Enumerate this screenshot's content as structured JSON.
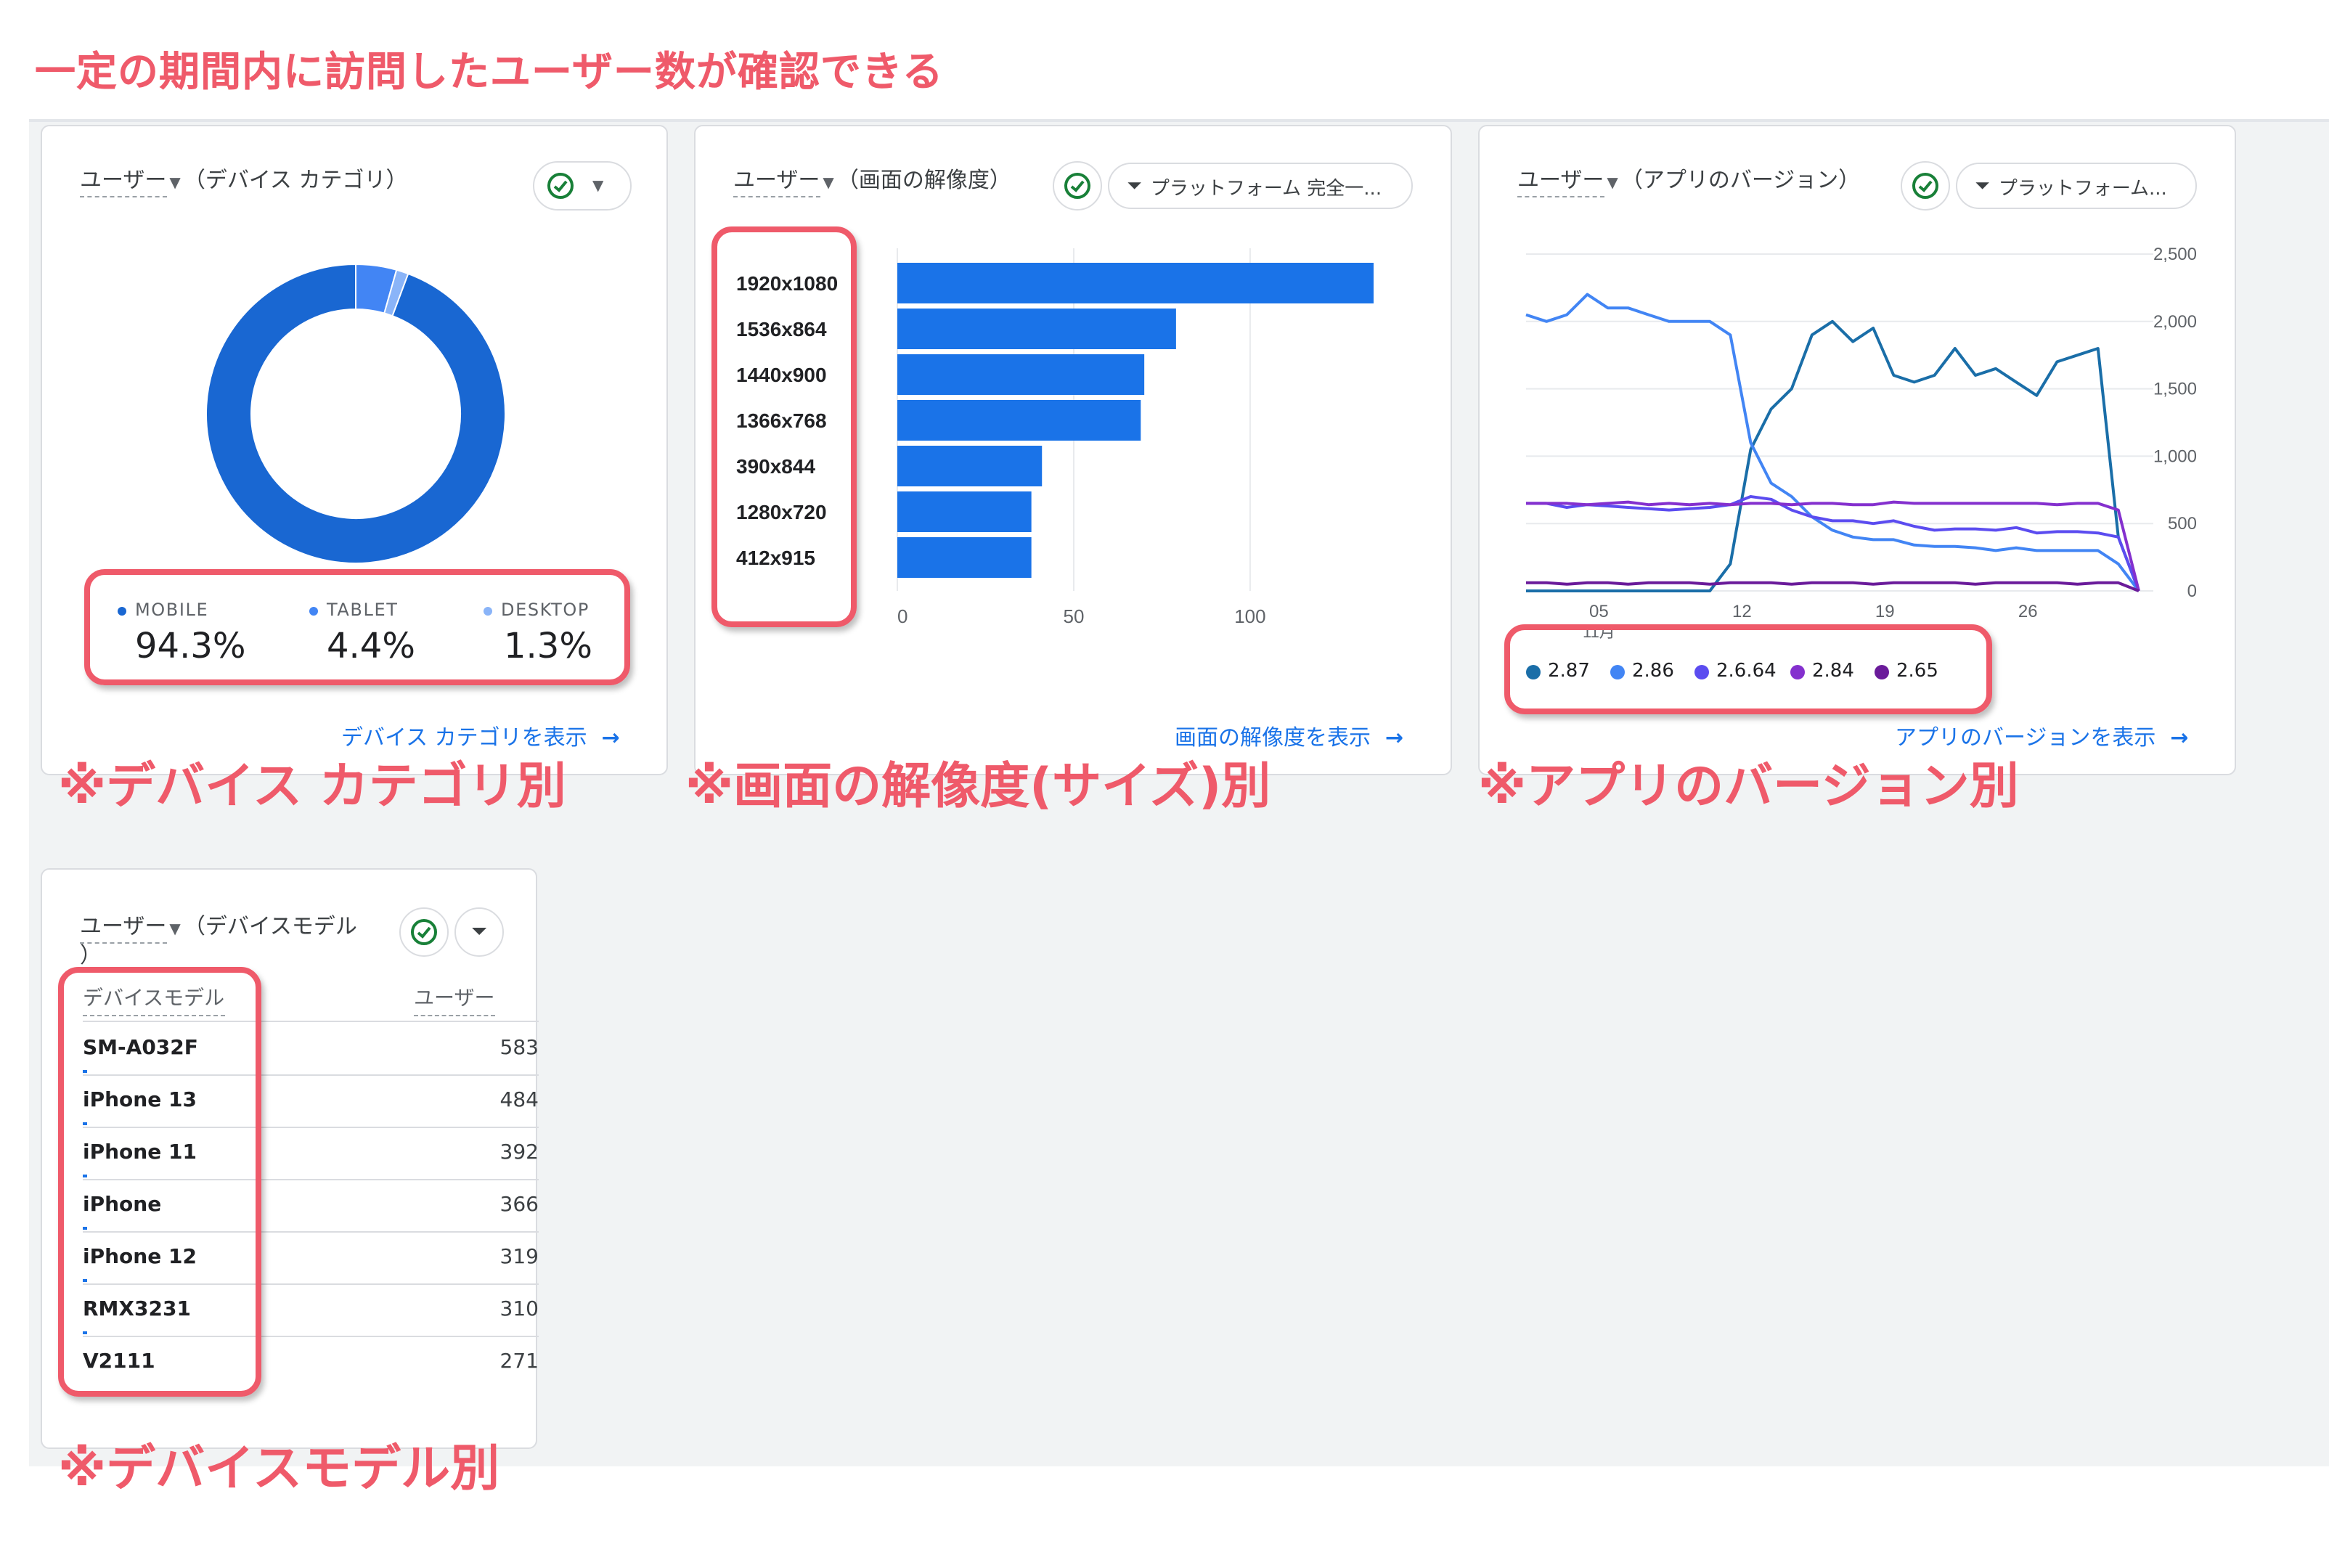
{
  "headline": "一定の期間内に訪問したユーザー数が確認できる",
  "colors": {
    "accent": "#1a73e8",
    "annotation": "#ef5a6a"
  },
  "card_device_category": {
    "metric": "ユーザー",
    "dimension": "（デバイス カテゴリ）",
    "check_icon": "check-circle-icon",
    "legend": [
      {
        "label": "MOBILE",
        "value": "94.3%",
        "color": "#1967d2"
      },
      {
        "label": "TABLET",
        "value": "4.4%",
        "color": "#4285f4"
      },
      {
        "label": "DESKTOP",
        "value": "1.3%",
        "color": "#8ab4f8"
      }
    ],
    "view_link": "デバイス カテゴリを表示",
    "annotation": "※デバイス カテゴリ別"
  },
  "card_resolution": {
    "metric": "ユーザー",
    "dimension": "（画面の解像度）",
    "filter_chip": "プラットフォーム 完全一...",
    "view_link": "画面の解像度を表示",
    "annotation": "※画面の解像度(サイズ)別"
  },
  "card_app_version": {
    "metric": "ユーザー",
    "dimension": "（アプリのバージョン）",
    "filter_chip": "プラットフォーム...",
    "view_link": "アプリのバージョンを表示",
    "annotation": "※アプリのバージョン別"
  },
  "card_device_model": {
    "metric": "ユーザー",
    "dimension": "（デバイスモデル",
    "dimension_cont": "）",
    "col_dimension": "デバイスモデル",
    "col_metric": "ユーザー",
    "rows": [
      {
        "name": "SM-A032F",
        "value": "583"
      },
      {
        "name": "iPhone 13",
        "value": "484"
      },
      {
        "name": "iPhone 11",
        "value": "392"
      },
      {
        "name": "iPhone",
        "value": "366"
      },
      {
        "name": "iPhone 12",
        "value": "319"
      },
      {
        "name": "RMX3231",
        "value": "310"
      },
      {
        "name": "V2111",
        "value": "271"
      }
    ],
    "annotation": "※デバイスモデル別"
  },
  "chart_data": [
    {
      "type": "pie",
      "donut": true,
      "categories": [
        "MOBILE",
        "TABLET",
        "DESKTOP"
      ],
      "values": [
        94.3,
        4.4,
        1.3
      ],
      "colors": [
        "#1967d2",
        "#4285f4",
        "#8ab4f8"
      ]
    },
    {
      "type": "bar",
      "orientation": "horizontal",
      "categories": [
        "1920x1080",
        "1536x864",
        "1440x900",
        "1366x768",
        "390x844",
        "1280x720",
        "412x915"
      ],
      "values": [
        135,
        79,
        70,
        69,
        41,
        38,
        38
      ],
      "xlim": [
        0,
        135
      ],
      "xticks": [
        0,
        50,
        100
      ],
      "color": "#1a73e8"
    },
    {
      "type": "line",
      "x_ticks": [
        "05",
        "12",
        "19",
        "26"
      ],
      "x_sub_label": "11月",
      "yticks": [
        "2,500",
        "2,000",
        "1,500",
        "1,000",
        "500",
        "0"
      ],
      "ylim": [
        0,
        2500
      ],
      "grid": true,
      "series": [
        {
          "name": "2.87",
          "color": "#1a6ea8",
          "values": [
            0,
            0,
            0,
            0,
            0,
            0,
            0,
            0,
            0,
            0,
            200,
            1050,
            1350,
            1500,
            1900,
            2000,
            1850,
            1950,
            1600,
            1550,
            1600,
            1800,
            1600,
            1650,
            1550,
            1450,
            1700,
            1750,
            1800,
            400,
            0
          ]
        },
        {
          "name": "2.86",
          "color": "#4285f4",
          "values": [
            2050,
            2000,
            2050,
            2200,
            2100,
            2100,
            2050,
            2000,
            2000,
            2000,
            1900,
            1100,
            800,
            700,
            550,
            450,
            400,
            380,
            380,
            340,
            330,
            330,
            320,
            300,
            320,
            300,
            300,
            300,
            300,
            200,
            0
          ]
        },
        {
          "name": "2.6.64",
          "color": "#5b4cf0",
          "values": [
            650,
            650,
            620,
            640,
            630,
            620,
            610,
            600,
            610,
            620,
            640,
            700,
            680,
            600,
            550,
            520,
            520,
            500,
            520,
            480,
            450,
            460,
            460,
            450,
            470,
            430,
            440,
            440,
            430,
            400,
            0
          ]
        },
        {
          "name": "2.84",
          "color": "#8430ce",
          "values": [
            650,
            650,
            650,
            640,
            650,
            660,
            640,
            650,
            640,
            650,
            640,
            650,
            650,
            640,
            650,
            650,
            640,
            640,
            660,
            650,
            650,
            650,
            650,
            650,
            650,
            650,
            640,
            650,
            650,
            600,
            0
          ]
        },
        {
          "name": "2.65",
          "color": "#6a1b9a",
          "values": [
            60,
            60,
            50,
            60,
            60,
            50,
            60,
            60,
            60,
            50,
            60,
            60,
            60,
            50,
            60,
            60,
            60,
            50,
            60,
            60,
            60,
            60,
            50,
            60,
            60,
            60,
            60,
            50,
            60,
            60,
            0
          ]
        }
      ]
    }
  ]
}
